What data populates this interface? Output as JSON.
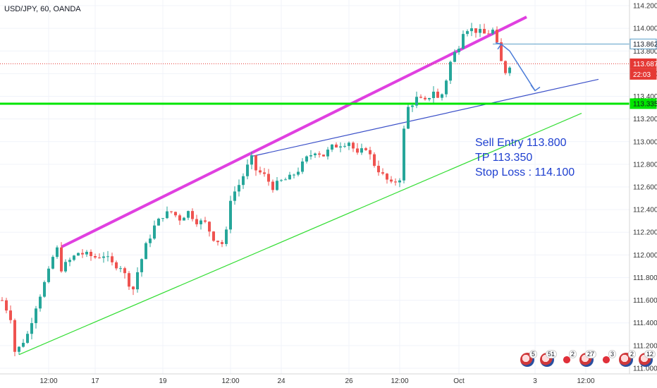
{
  "header": {
    "title": "USD/JPY, 60, OANDA"
  },
  "trade_note": {
    "line1": "Sell Entry 113.800",
    "line2": "TP 113.350",
    "line3": "Stop Loss : 114.100"
  },
  "price_tags": [
    {
      "value": "113.862",
      "color": "#ffffff",
      "text_color": "#131722",
      "border": "#5a9ec8"
    },
    {
      "value": "113.687",
      "color": "#e53935",
      "text_color": "#ffffff",
      "border": "#e53935"
    },
    {
      "value": "22:03",
      "color": "#e53935",
      "text_color": "#ffffff",
      "border": "#e53935"
    },
    {
      "value": "113.335",
      "color": "#00e600",
      "text_color": "#131722",
      "border": "#00e600"
    }
  ],
  "events": [
    {
      "count": "5",
      "icon": "us-flag-icon"
    },
    {
      "count": "51",
      "icon": "us-flag-icon"
    },
    {
      "count": "2",
      "icon": "jp-flag-icon"
    },
    {
      "count": "27",
      "icon": "us-flag-icon"
    },
    {
      "count": "3",
      "icon": "jp-flag-icon"
    },
    {
      "count": "2",
      "icon": "us-flag-icon"
    },
    {
      "count": "12",
      "icon": "us-flag-icon"
    }
  ],
  "chart_data": {
    "type": "candlestick",
    "symbol": "USD/JPY",
    "timeframe": "60",
    "source": "OANDA",
    "ylim": [
      110.95,
      114.25
    ],
    "y_ticks": [
      "114.200",
      "114.000",
      "113.800",
      "113.600",
      "113.400",
      "113.200",
      "113.000",
      "112.800",
      "112.600",
      "112.400",
      "112.200",
      "112.000",
      "111.800",
      "111.600",
      "111.400",
      "111.200",
      "111.000"
    ],
    "x_ticks": [
      "12:00",
      "17",
      "19",
      "12:00",
      "24",
      "26",
      "12:00",
      "Oct",
      "3",
      "12:00"
    ],
    "x_tick_index": [
      11,
      22,
      38,
      54,
      66,
      82,
      94,
      108,
      126,
      138
    ],
    "bars_total": 150,
    "close_path": [
      [
        0,
        111.6
      ],
      [
        2,
        111.45
      ],
      [
        3,
        111.15
      ],
      [
        4,
        111.18
      ],
      [
        6,
        111.3
      ],
      [
        8,
        111.55
      ],
      [
        10,
        111.75
      ],
      [
        11,
        111.85
      ],
      [
        12,
        111.98
      ],
      [
        13,
        112.05
      ],
      [
        14,
        111.88
      ],
      [
        16,
        111.95
      ],
      [
        18,
        112.02
      ],
      [
        20,
        112.0
      ],
      [
        22,
        111.98
      ],
      [
        24,
        112.0
      ],
      [
        26,
        111.92
      ],
      [
        28,
        111.9
      ],
      [
        30,
        111.75
      ],
      [
        31,
        111.7
      ],
      [
        32,
        111.85
      ],
      [
        34,
        112.08
      ],
      [
        36,
        112.25
      ],
      [
        38,
        112.35
      ],
      [
        40,
        112.38
      ],
      [
        42,
        112.32
      ],
      [
        44,
        112.38
      ],
      [
        46,
        112.3
      ],
      [
        48,
        112.28
      ],
      [
        50,
        112.15
      ],
      [
        52,
        112.1
      ],
      [
        53,
        112.2
      ],
      [
        54,
        112.5
      ],
      [
        56,
        112.62
      ],
      [
        58,
        112.78
      ],
      [
        59,
        112.85
      ],
      [
        60,
        112.75
      ],
      [
        62,
        112.7
      ],
      [
        64,
        112.6
      ],
      [
        66,
        112.65
      ],
      [
        68,
        112.68
      ],
      [
        70,
        112.75
      ],
      [
        72,
        112.85
      ],
      [
        74,
        112.92
      ],
      [
        76,
        112.88
      ],
      [
        78,
        112.95
      ],
      [
        80,
        112.98
      ],
      [
        82,
        113.0
      ],
      [
        84,
        112.88
      ],
      [
        86,
        112.95
      ],
      [
        88,
        112.8
      ],
      [
        90,
        112.7
      ],
      [
        92,
        112.62
      ],
      [
        94,
        112.68
      ],
      [
        95,
        113.1
      ],
      [
        96,
        113.3
      ],
      [
        98,
        113.38
      ],
      [
        100,
        113.35
      ],
      [
        102,
        113.45
      ],
      [
        103,
        113.38
      ],
      [
        104,
        113.42
      ],
      [
        105,
        113.55
      ],
      [
        106,
        113.7
      ],
      [
        107,
        113.78
      ],
      [
        108,
        113.85
      ],
      [
        109,
        113.98
      ],
      [
        110,
        114.0
      ],
      [
        112,
        113.98
      ],
      [
        114,
        113.95
      ],
      [
        116,
        113.98
      ],
      [
        117,
        113.85
      ],
      [
        118,
        113.7
      ],
      [
        119,
        113.62
      ],
      [
        120,
        113.68
      ]
    ],
    "lines": [
      {
        "name": "upper-channel",
        "color": "#e040e0",
        "from": [
          14,
          112.07
        ],
        "to": [
          124,
          114.1
        ]
      },
      {
        "name": "middle-trend",
        "color": "#3a4fc8",
        "from": [
          59,
          112.87
        ],
        "to": [
          141,
          113.55
        ]
      },
      {
        "name": "lower-trend",
        "color": "#33dd33",
        "from": [
          4,
          111.12
        ],
        "to": [
          137,
          113.25
        ]
      },
      {
        "name": "support",
        "color": "#00e600",
        "from": [
          0,
          113.335
        ],
        "to": [
          150,
          113.335
        ]
      },
      {
        "name": "resistance-level",
        "color": "#5a9ec8",
        "from": [
          116,
          113.862
        ],
        "to": [
          150,
          113.862
        ]
      },
      {
        "name": "current-price",
        "color": "#e53935",
        "from": [
          0,
          113.687
        ],
        "to": [
          150,
          113.687
        ]
      }
    ],
    "projection": [
      [
        118,
        113.86
      ],
      [
        120,
        113.8
      ],
      [
        126,
        113.45
      ]
    ]
  }
}
